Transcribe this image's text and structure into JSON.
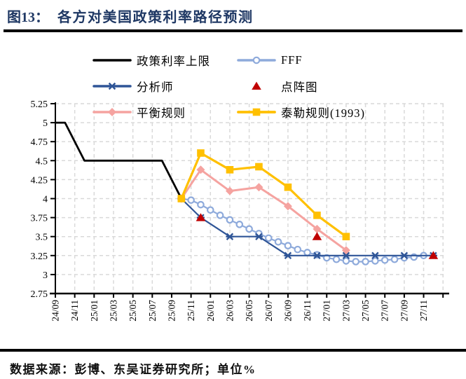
{
  "title": {
    "figure_label": "图13：",
    "text": "各方对美国政策利率路径预测"
  },
  "source_note": "数据来源：彭博、东吴证券研究所；单位%",
  "chart_data": {
    "type": "line",
    "unit": "%",
    "style": {
      "grid_color": "#D9D9D9",
      "axis_color": "#000000",
      "title_color": "#1F3864"
    },
    "x_axis": {
      "tick_labels": [
        "24/09",
        "24/11",
        "25/01",
        "25/03",
        "25/05",
        "25/07",
        "25/09",
        "25/11",
        "26/01",
        "26/03",
        "26/05",
        "26/07",
        "26/09",
        "26/11",
        "27/01",
        "27/03",
        "27/05",
        "27/07",
        "27/09",
        "27/11"
      ],
      "months_per_tick": 2,
      "total_months": 40
    },
    "y_axis": {
      "min": 2.75,
      "max": 5.25,
      "step": 0.25,
      "tick_labels_top_to_bottom": [
        "5.25",
        "5",
        "4.75",
        "4.5",
        "4.25",
        "4",
        "3.75",
        "3.5",
        "3.25",
        "3",
        "2.75"
      ]
    },
    "grid": "dashed",
    "legend_position": "top-inside",
    "legend_order": [
      "policy_ceiling",
      "fff",
      "analysts",
      "dot_plot",
      "balanced_rule",
      "taylor_rule_1993"
    ],
    "series": [
      {
        "key": "policy_ceiling",
        "name": "政策利率上限",
        "color": "#000000",
        "marker": "none",
        "line_width": 2.8,
        "points": [
          [
            "24/09",
            5.0
          ],
          [
            "24/10",
            5.0
          ],
          [
            "24/11",
            4.75
          ],
          [
            "24/12",
            4.5
          ],
          [
            "25/08",
            4.5
          ],
          [
            "25/09",
            4.25
          ],
          [
            "25/10",
            4.0
          ]
        ]
      },
      {
        "key": "fff",
        "name": "FFF",
        "color": "#8EAADB",
        "marker": "circle-open",
        "line_width": 2.2,
        "points": [
          [
            "25/10",
            4.0
          ],
          [
            "25/11",
            3.98
          ],
          [
            "25/12",
            3.92
          ],
          [
            "26/01",
            3.85
          ],
          [
            "26/02",
            3.78
          ],
          [
            "26/03",
            3.72
          ],
          [
            "26/04",
            3.66
          ],
          [
            "26/05",
            3.6
          ],
          [
            "26/06",
            3.54
          ],
          [
            "26/07",
            3.48
          ],
          [
            "26/08",
            3.43
          ],
          [
            "26/09",
            3.38
          ],
          [
            "26/10",
            3.33
          ],
          [
            "26/11",
            3.29
          ],
          [
            "26/12",
            3.26
          ],
          [
            "27/01",
            3.22
          ],
          [
            "27/02",
            3.2
          ],
          [
            "27/03",
            3.18
          ],
          [
            "27/04",
            3.17
          ],
          [
            "27/05",
            3.17
          ],
          [
            "27/06",
            3.18
          ],
          [
            "27/07",
            3.19
          ],
          [
            "27/08",
            3.2
          ],
          [
            "27/09",
            3.22
          ],
          [
            "27/10",
            3.23
          ],
          [
            "27/11",
            3.25
          ]
        ]
      },
      {
        "key": "analysts",
        "name": "分析师",
        "color": "#2F5597",
        "marker": "asterisk",
        "line_width": 2.2,
        "points": [
          [
            "25/10",
            4.0
          ],
          [
            "25/12",
            3.75
          ],
          [
            "26/03",
            3.5
          ],
          [
            "26/06",
            3.5
          ],
          [
            "26/09",
            3.25
          ],
          [
            "26/12",
            3.25
          ],
          [
            "27/03",
            3.25
          ],
          [
            "27/06",
            3.25
          ],
          [
            "27/09",
            3.25
          ],
          [
            "27/12",
            3.25
          ]
        ]
      },
      {
        "key": "dot_plot",
        "name": "点阵图",
        "color": "#C00000",
        "marker": "triangle",
        "line": false,
        "points": [
          [
            "25/12",
            3.75
          ],
          [
            "26/12",
            3.5
          ],
          [
            "27/12",
            3.25
          ]
        ]
      },
      {
        "key": "balanced_rule",
        "name": "平衡规则",
        "color": "#F5A3A0",
        "marker": "diamond",
        "line_width": 3,
        "points": [
          [
            "25/10",
            4.0
          ],
          [
            "25/12",
            4.38
          ],
          [
            "26/03",
            4.1
          ],
          [
            "26/06",
            4.15
          ],
          [
            "26/09",
            3.9
          ],
          [
            "26/12",
            3.6
          ],
          [
            "27/03",
            3.32
          ]
        ]
      },
      {
        "key": "taylor_rule_1993",
        "name": "泰勒规则(1993)",
        "color": "#FFC000",
        "marker": "square",
        "line_width": 3.2,
        "points": [
          [
            "25/10",
            4.0
          ],
          [
            "25/12",
            4.6
          ],
          [
            "26/03",
            4.38
          ],
          [
            "26/06",
            4.42
          ],
          [
            "26/09",
            4.15
          ],
          [
            "26/12",
            3.78
          ],
          [
            "27/03",
            3.5
          ]
        ]
      }
    ]
  }
}
